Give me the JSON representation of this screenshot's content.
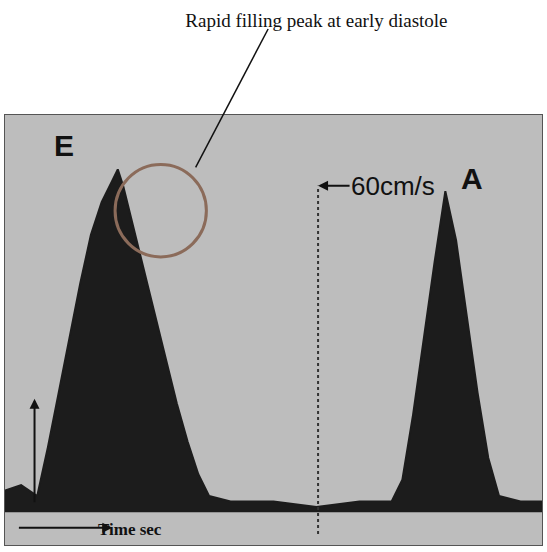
{
  "chart_data": {
    "type": "area",
    "title": "Rapid filling peak at early diastole",
    "x_label": "Time sec",
    "x": [
      0,
      0.03,
      0.06,
      0.08,
      0.1,
      0.12,
      0.14,
      0.16,
      0.18,
      0.2,
      0.21,
      0.22,
      0.24,
      0.26,
      0.28,
      0.3,
      0.32,
      0.34,
      0.36,
      0.38,
      0.42,
      0.5,
      0.58,
      0.66,
      0.72,
      0.74,
      0.76,
      0.78,
      0.8,
      0.82,
      0.84,
      0.86,
      0.88,
      0.9,
      0.92,
      0.96,
      1.0
    ],
    "values": [
      4,
      5,
      3,
      12,
      22,
      32,
      42,
      51,
      57,
      61,
      63,
      60,
      52,
      44,
      36,
      28,
      20,
      13,
      7,
      3,
      2,
      2,
      1,
      2,
      2,
      6,
      18,
      32,
      46,
      59,
      50,
      36,
      22,
      10,
      3,
      2,
      2
    ],
    "color": "#1c1c1c",
    "xlim": [
      0,
      1
    ],
    "ylim": [
      -6,
      73
    ],
    "tick_labels": false,
    "grid": false,
    "annotations": [
      {
        "text": "E",
        "x": 0.11,
        "y": 64
      },
      {
        "text": "A",
        "x": 0.87,
        "y": 58
      },
      {
        "text": "60cm/s",
        "x": 0.583,
        "y": 60
      }
    ]
  }
}
